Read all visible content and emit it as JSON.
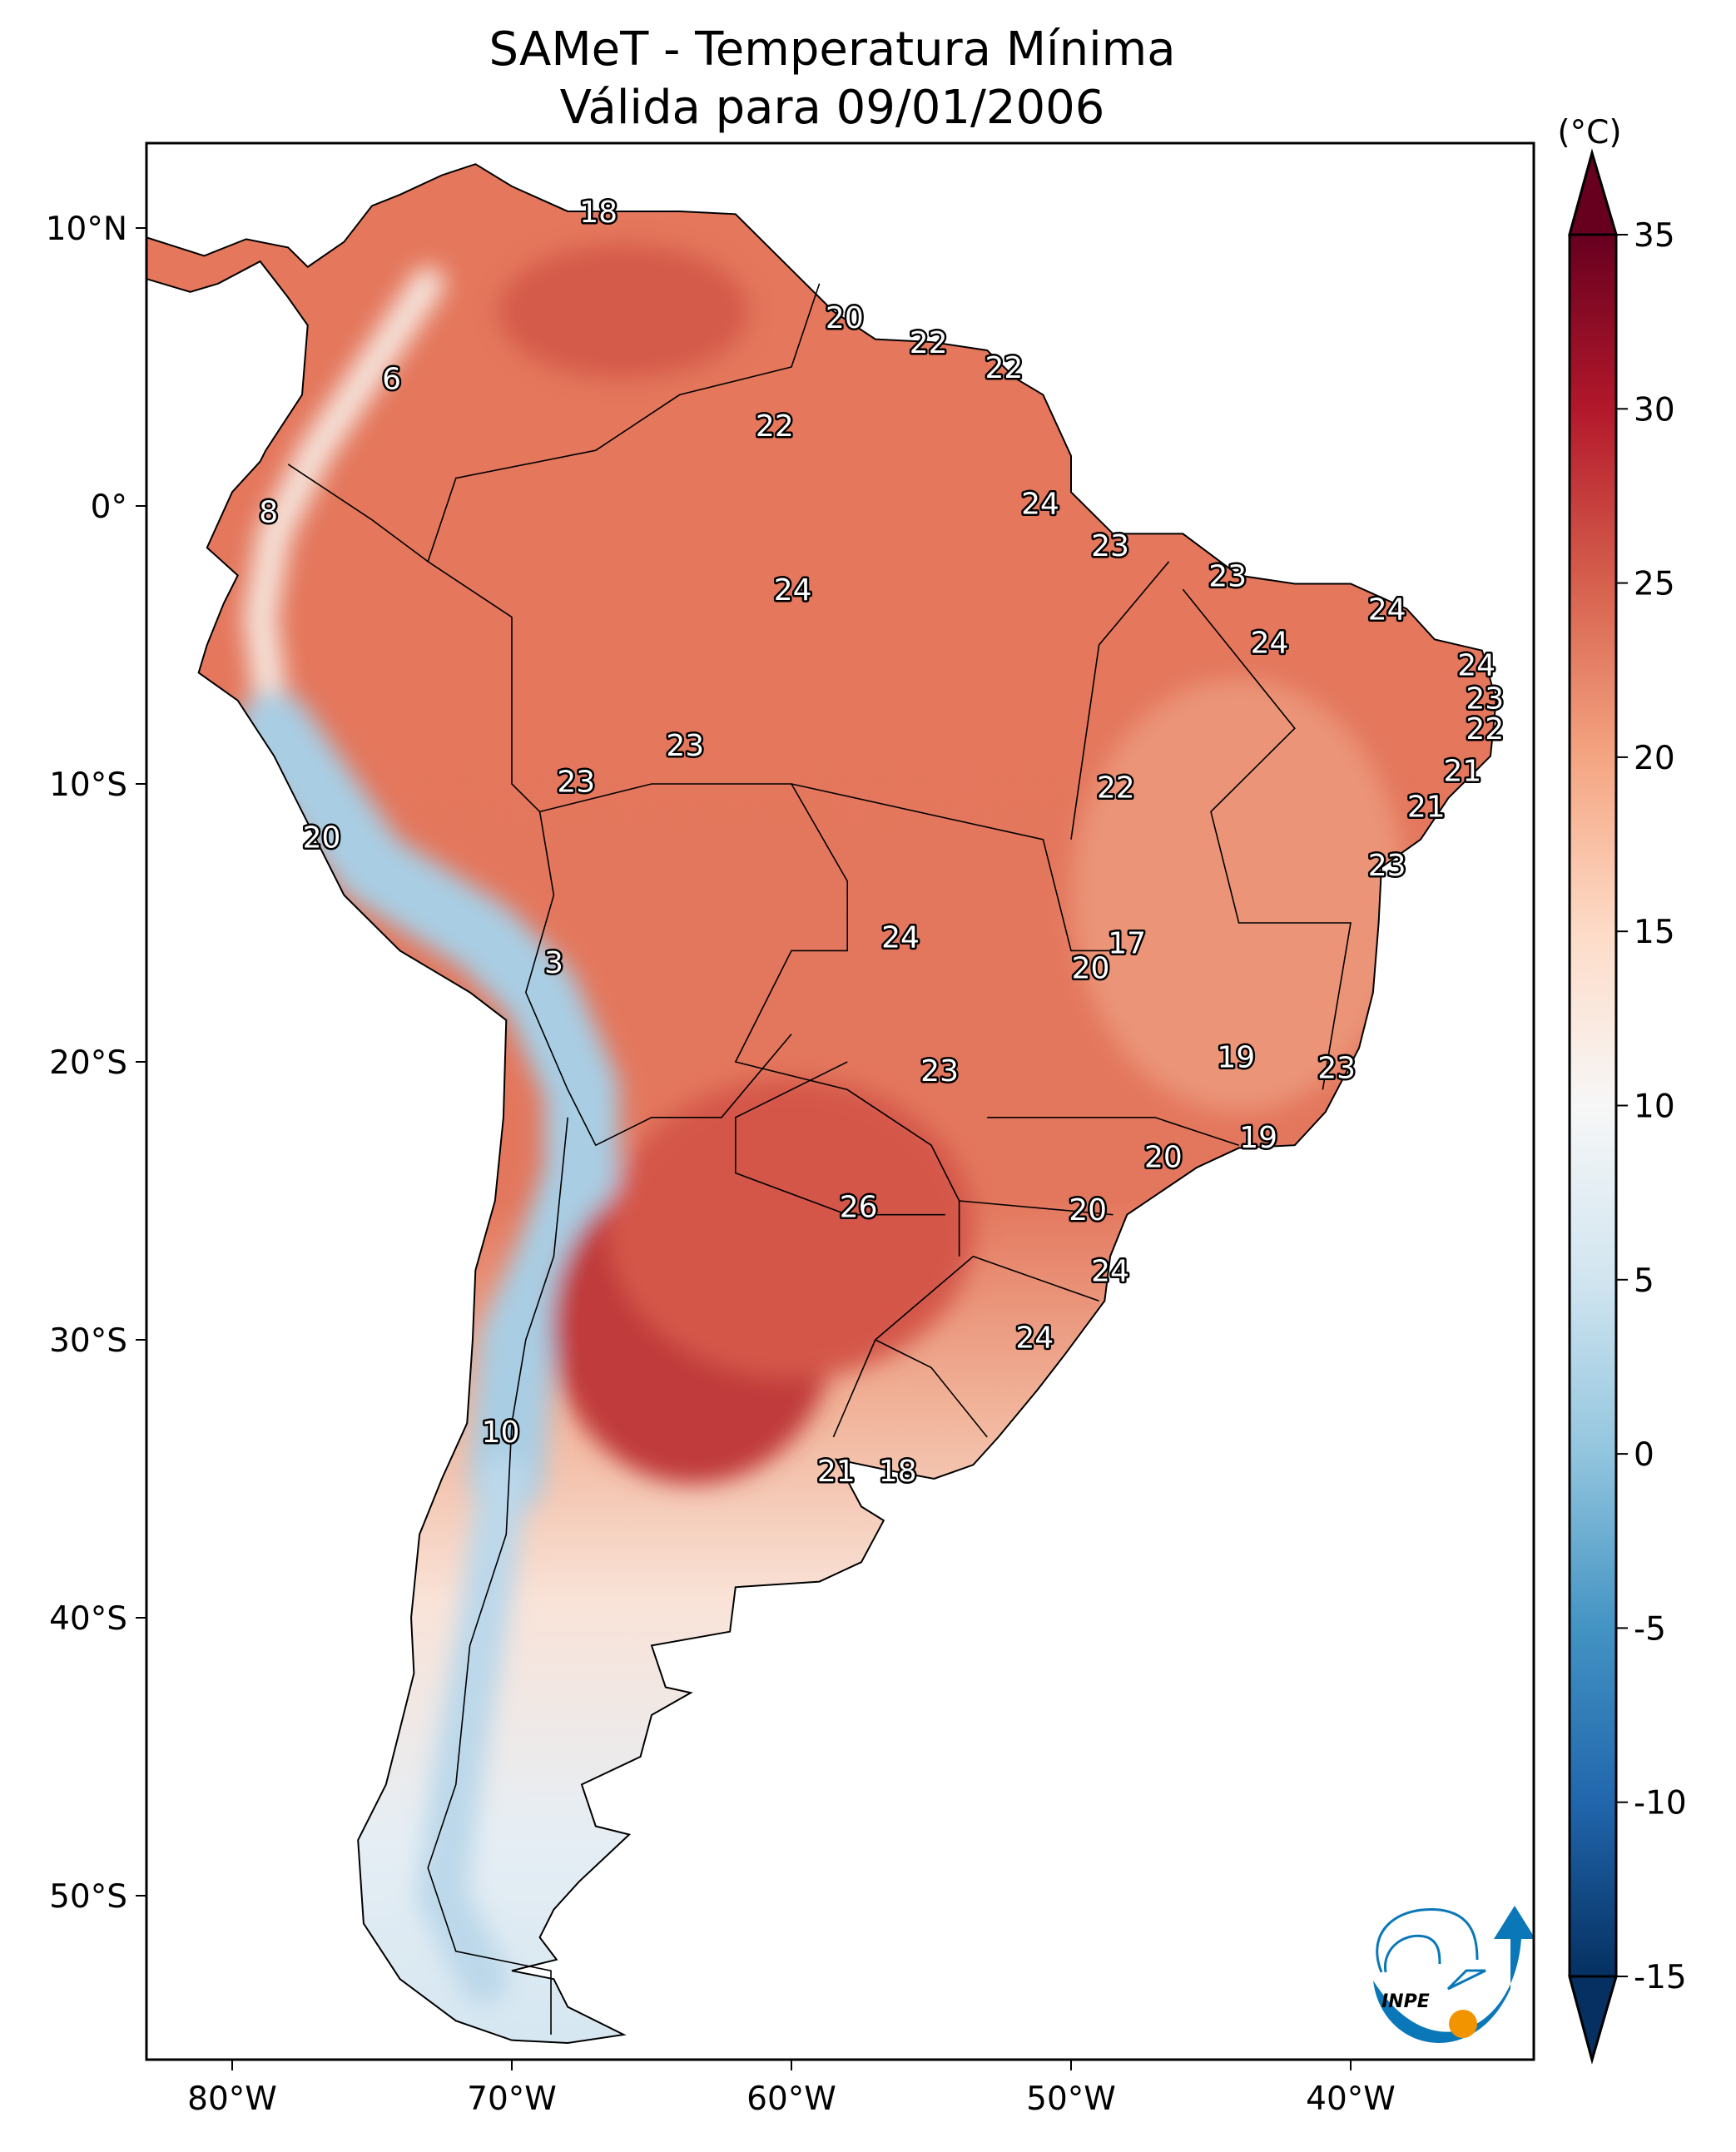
{
  "title": {
    "line1": "SAMeT - Temperatura Mínima",
    "line2": "Válida para 09/01/2006"
  },
  "map": {
    "extent_lon": [
      -82.9,
      -33.4
    ],
    "extent_lat": [
      -55.9,
      13.1
    ],
    "x_ticks": [
      {
        "lon": -80,
        "label": "80°W"
      },
      {
        "lon": -70,
        "label": "70°W"
      },
      {
        "lon": -60,
        "label": "60°W"
      },
      {
        "lon": -50,
        "label": "50°W"
      },
      {
        "lon": -40,
        "label": "40°W"
      }
    ],
    "y_ticks": [
      {
        "lat": 10,
        "label": "10°N"
      },
      {
        "lat": 0,
        "label": "0°"
      },
      {
        "lat": -10,
        "label": "10°S"
      },
      {
        "lat": -20,
        "label": "20°S"
      },
      {
        "lat": -30,
        "label": "30°S"
      },
      {
        "lat": -40,
        "label": "40°S"
      },
      {
        "lat": -50,
        "label": "50°S"
      }
    ],
    "station_labels": [
      {
        "lon": -66.9,
        "lat": 10.6,
        "value": "18"
      },
      {
        "lon": -58.1,
        "lat": 6.8,
        "value": "20"
      },
      {
        "lon": -55.1,
        "lat": 5.9,
        "value": "22"
      },
      {
        "lon": -52.4,
        "lat": 5.0,
        "value": "22"
      },
      {
        "lon": -74.3,
        "lat": 4.6,
        "value": "6"
      },
      {
        "lon": -60.6,
        "lat": 2.9,
        "value": "22"
      },
      {
        "lon": -78.7,
        "lat": -0.2,
        "value": "8"
      },
      {
        "lon": -51.1,
        "lat": 0.1,
        "value": "24"
      },
      {
        "lon": -48.6,
        "lat": -1.4,
        "value": "23"
      },
      {
        "lon": -44.4,
        "lat": -2.5,
        "value": "23"
      },
      {
        "lon": -59.95,
        "lat": -3.0,
        "value": "24"
      },
      {
        "lon": -38.7,
        "lat": -3.7,
        "value": "24"
      },
      {
        "lon": -42.9,
        "lat": -4.9,
        "value": "24"
      },
      {
        "lon": -35.5,
        "lat": -5.7,
        "value": "24"
      },
      {
        "lon": -35.2,
        "lat": -6.9,
        "value": "23"
      },
      {
        "lon": -35.2,
        "lat": -8.0,
        "value": "22"
      },
      {
        "lon": -63.8,
        "lat": -8.6,
        "value": "23"
      },
      {
        "lon": -36.0,
        "lat": -9.5,
        "value": "21"
      },
      {
        "lon": -67.7,
        "lat": -9.9,
        "value": "23"
      },
      {
        "lon": -48.4,
        "lat": -10.1,
        "value": "22"
      },
      {
        "lon": -37.3,
        "lat": -10.8,
        "value": "21"
      },
      {
        "lon": -76.8,
        "lat": -11.9,
        "value": "20"
      },
      {
        "lon": -38.7,
        "lat": -12.9,
        "value": "23"
      },
      {
        "lon": -56.1,
        "lat": -15.5,
        "value": "24"
      },
      {
        "lon": -48.0,
        "lat": -15.7,
        "value": "17"
      },
      {
        "lon": -68.5,
        "lat": -16.4,
        "value": "3"
      },
      {
        "lon": -49.3,
        "lat": -16.6,
        "value": "20"
      },
      {
        "lon": -44.1,
        "lat": -19.8,
        "value": "19"
      },
      {
        "lon": -40.5,
        "lat": -20.2,
        "value": "23"
      },
      {
        "lon": -54.7,
        "lat": -20.3,
        "value": "23"
      },
      {
        "lon": -43.3,
        "lat": -22.7,
        "value": "19"
      },
      {
        "lon": -46.7,
        "lat": -23.4,
        "value": "20"
      },
      {
        "lon": -57.6,
        "lat": -25.2,
        "value": "26"
      },
      {
        "lon": -49.4,
        "lat": -25.3,
        "value": "20"
      },
      {
        "lon": -48.6,
        "lat": -27.5,
        "value": "24"
      },
      {
        "lon": -51.3,
        "lat": -29.9,
        "value": "24"
      },
      {
        "lon": -70.4,
        "lat": -33.3,
        "value": "10"
      },
      {
        "lon": -58.4,
        "lat": -34.7,
        "value": "21"
      },
      {
        "lon": -56.2,
        "lat": -34.7,
        "value": "18"
      }
    ]
  },
  "colorbar": {
    "unit": "(°C)",
    "min": -15,
    "max": 35,
    "extend": "both",
    "ticks": [
      "35",
      "30",
      "25",
      "20",
      "15",
      "10",
      "5",
      "0",
      "-5",
      "-10",
      "-15"
    ],
    "tick_values": [
      35,
      30,
      25,
      20,
      15,
      10,
      5,
      0,
      -5,
      -10,
      -15
    ],
    "colors": [
      "#053061",
      "#2166ac",
      "#4393c3",
      "#92c5de",
      "#d1e5f0",
      "#f7f7f7",
      "#fddbc7",
      "#f4a582",
      "#d6604d",
      "#b2182b",
      "#67001f"
    ]
  },
  "logo": {
    "text": "INPE",
    "blue": "#0a77b8",
    "orange": "#f29400"
  }
}
